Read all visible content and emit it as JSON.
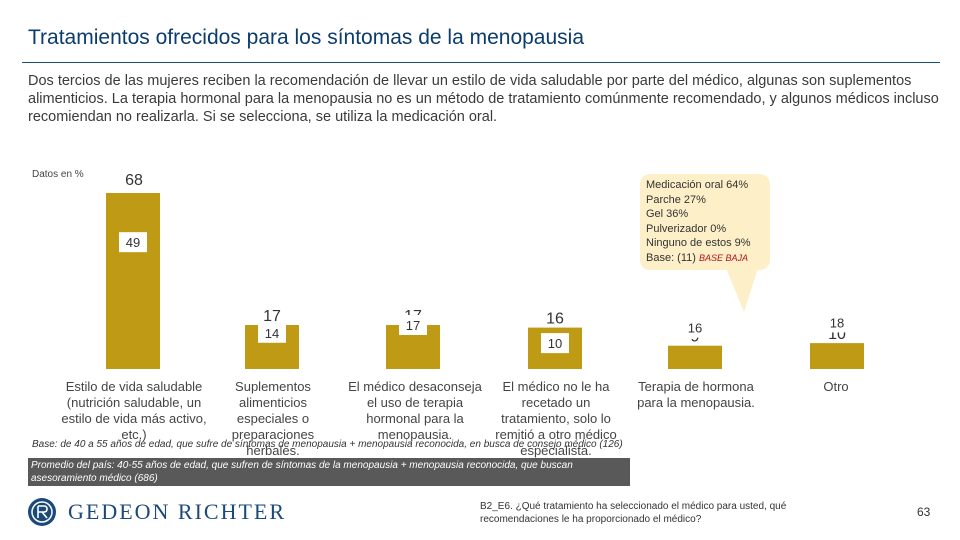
{
  "page": {
    "title": "Tratamientos ofrecidos para los síntomas de la menopausia",
    "intro": "Dos tercios de las mujeres reciben la recomendación de llevar un estilo de vida saludable por parte del médico, algunas son suplementos alimenticios. La terapia hormonal para la menopausia no es un método de tratamiento comúnmente recomendado, y algunos médicos incluso recomiendan no realizarla. Si se selecciona, se utiliza la medicación oral.",
    "data_note": "Datos en %",
    "base_text": "Base: de 40 a 55 años de edad, que sufre de síntomas de menopausia + menopausia reconocida, en busca de consejo médico (126)",
    "avg_text": "Promedio del país: 40-55 años de edad, que sufren de síntomas de la menopausia + menopausia reconocida, que buscan asesoramiento médico (686)",
    "logo_text": "GEDEON RICHTER",
    "question": "B2_E6. ¿Qué tratamiento ha seleccionado el médico para usted, qué recomendaciones le ha proporcionado el médico?",
    "page_number": "63"
  },
  "callout": {
    "lines": [
      "Medicación oral 64%",
      "Parche 27%",
      "Gel 36%",
      "Pulverizador 0%",
      "Ninguno de estos 9%"
    ],
    "base": "Base: (11)",
    "low_base": "BASE BAJA"
  },
  "chart_data": {
    "type": "bar",
    "categories": [
      "Estilo de vida saludable (nutrición saludable, un estilo de vida más activo, etc.)",
      "Suplementos alimenticios especiales o preparaciones herbales.",
      "El médico desaconseja el uso de terapia hormonal para la menopausia.",
      "El médico no le ha recetado un tratamiento, solo lo remitió a otro médico especialista.",
      "Terapia de hormona para la menopausia.",
      "Otro"
    ],
    "series": [
      {
        "values": [
          68,
          17,
          17,
          16,
          9,
          10
        ]
      },
      {
        "values": [
          49,
          14,
          17,
          10,
          16,
          18
        ]
      }
    ],
    "ylim": [
      0,
      70
    ],
    "colors": {
      "bar": "#bf9b15",
      "callout": "#fdefc8",
      "title": "#0b3c6e"
    }
  }
}
